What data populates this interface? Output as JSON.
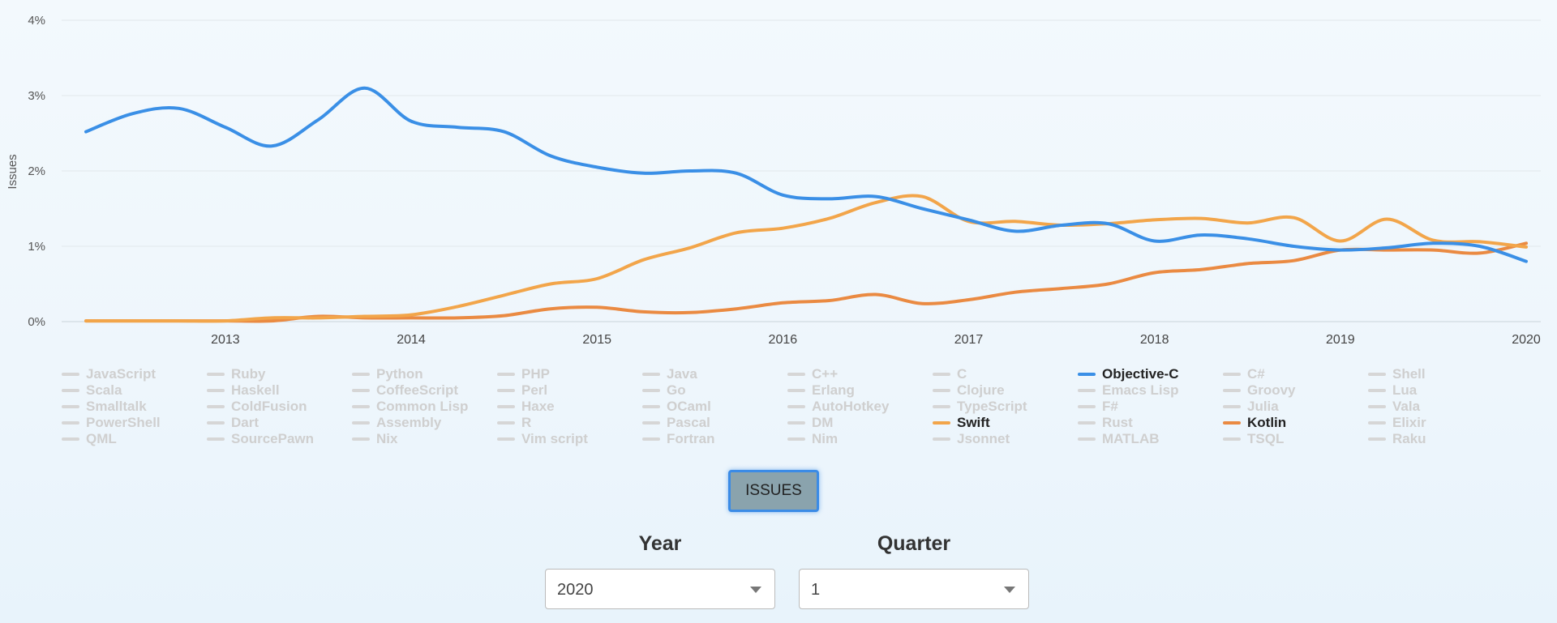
{
  "chart_data": {
    "type": "line",
    "ylabel": "Issues",
    "xlabel": "",
    "ylim": [
      0,
      4
    ],
    "y_ticks": [
      "0%",
      "1%",
      "2%",
      "3%",
      "4%"
    ],
    "x_range": [
      2012.25,
      2020.0
    ],
    "x_ticks": [
      "2013",
      "2014",
      "2015",
      "2016",
      "2017",
      "2018",
      "2019",
      "2020"
    ],
    "grid": true,
    "legend_position": "bottom",
    "series": [
      {
        "name": "Objective-C",
        "color": "#3a8fe6",
        "x": [
          2012.25,
          2012.5,
          2012.75,
          2013.0,
          2013.25,
          2013.5,
          2013.75,
          2014.0,
          2014.25,
          2014.5,
          2014.75,
          2015.0,
          2015.25,
          2015.5,
          2015.75,
          2016.0,
          2016.25,
          2016.5,
          2016.75,
          2017.0,
          2017.25,
          2017.5,
          2017.75,
          2018.0,
          2018.25,
          2018.5,
          2018.75,
          2019.0,
          2019.25,
          2019.5,
          2019.75,
          2020.0
        ],
        "y": [
          2.52,
          2.76,
          2.83,
          2.58,
          2.33,
          2.68,
          3.1,
          2.66,
          2.58,
          2.52,
          2.2,
          2.05,
          1.97,
          2.0,
          1.97,
          1.68,
          1.63,
          1.66,
          1.5,
          1.35,
          1.2,
          1.28,
          1.3,
          1.07,
          1.15,
          1.1,
          1.0,
          0.95,
          0.98,
          1.04,
          1.0,
          0.8
        ]
      },
      {
        "name": "Swift",
        "color": "#f2a54a",
        "x": [
          2012.25,
          2012.5,
          2012.75,
          2013.0,
          2013.25,
          2013.5,
          2013.75,
          2014.0,
          2014.25,
          2014.5,
          2014.75,
          2015.0,
          2015.25,
          2015.5,
          2015.75,
          2016.0,
          2016.25,
          2016.5,
          2016.75,
          2017.0,
          2017.25,
          2017.5,
          2017.75,
          2018.0,
          2018.25,
          2018.5,
          2018.75,
          2019.0,
          2019.25,
          2019.5,
          2019.75,
          2020.0
        ],
        "y": [
          0.01,
          0.01,
          0.01,
          0.01,
          0.05,
          0.05,
          0.07,
          0.09,
          0.2,
          0.35,
          0.5,
          0.57,
          0.82,
          0.98,
          1.18,
          1.24,
          1.37,
          1.58,
          1.66,
          1.33,
          1.33,
          1.28,
          1.3,
          1.35,
          1.37,
          1.31,
          1.38,
          1.07,
          1.36,
          1.08,
          1.06,
          0.99
        ]
      },
      {
        "name": "Kotlin",
        "color": "#ea8a42",
        "x": [
          2012.25,
          2012.5,
          2012.75,
          2013.0,
          2013.25,
          2013.5,
          2013.75,
          2014.0,
          2014.25,
          2014.5,
          2014.75,
          2015.0,
          2015.25,
          2015.5,
          2015.75,
          2016.0,
          2016.25,
          2016.5,
          2016.75,
          2017.0,
          2017.25,
          2017.5,
          2017.75,
          2018.0,
          2018.25,
          2018.5,
          2018.75,
          2019.0,
          2019.25,
          2019.5,
          2019.75,
          2020.0
        ],
        "y": [
          0.01,
          0.01,
          0.01,
          0.01,
          0.01,
          0.07,
          0.05,
          0.05,
          0.05,
          0.08,
          0.17,
          0.19,
          0.13,
          0.12,
          0.17,
          0.25,
          0.28,
          0.36,
          0.24,
          0.29,
          0.39,
          0.44,
          0.5,
          0.65,
          0.69,
          0.77,
          0.81,
          0.95,
          0.95,
          0.95,
          0.91,
          1.04
        ]
      }
    ]
  },
  "legend": {
    "items": [
      {
        "label": "JavaScript",
        "active": false
      },
      {
        "label": "Ruby",
        "active": false
      },
      {
        "label": "Python",
        "active": false
      },
      {
        "label": "PHP",
        "active": false
      },
      {
        "label": "Java",
        "active": false
      },
      {
        "label": "C++",
        "active": false
      },
      {
        "label": "C",
        "active": false
      },
      {
        "label": "Objective-C",
        "active": true,
        "color": "#3a8fe6"
      },
      {
        "label": "C#",
        "active": false
      },
      {
        "label": "Shell",
        "active": false
      },
      {
        "label": "Scala",
        "active": false
      },
      {
        "label": "Haskell",
        "active": false
      },
      {
        "label": "CoffeeScript",
        "active": false
      },
      {
        "label": "Perl",
        "active": false
      },
      {
        "label": "Go",
        "active": false
      },
      {
        "label": "Erlang",
        "active": false
      },
      {
        "label": "Clojure",
        "active": false
      },
      {
        "label": "Emacs Lisp",
        "active": false
      },
      {
        "label": "Groovy",
        "active": false
      },
      {
        "label": "Lua",
        "active": false
      },
      {
        "label": "Smalltalk",
        "active": false
      },
      {
        "label": "ColdFusion",
        "active": false
      },
      {
        "label": "Common Lisp",
        "active": false
      },
      {
        "label": "Haxe",
        "active": false
      },
      {
        "label": "OCaml",
        "active": false
      },
      {
        "label": "AutoHotkey",
        "active": false
      },
      {
        "label": "TypeScript",
        "active": false
      },
      {
        "label": "F#",
        "active": false
      },
      {
        "label": "Julia",
        "active": false
      },
      {
        "label": "Vala",
        "active": false
      },
      {
        "label": "PowerShell",
        "active": false
      },
      {
        "label": "Dart",
        "active": false
      },
      {
        "label": "Assembly",
        "active": false
      },
      {
        "label": "R",
        "active": false
      },
      {
        "label": "Pascal",
        "active": false
      },
      {
        "label": "DM",
        "active": false
      },
      {
        "label": "Swift",
        "active": true,
        "color": "#f2a54a"
      },
      {
        "label": "Rust",
        "active": false
      },
      {
        "label": "Kotlin",
        "active": true,
        "color": "#ea8a42"
      },
      {
        "label": "Elixir",
        "active": false
      },
      {
        "label": "QML",
        "active": false
      },
      {
        "label": "SourcePawn",
        "active": false
      },
      {
        "label": "Nix",
        "active": false
      },
      {
        "label": "Vim script",
        "active": false
      },
      {
        "label": "Fortran",
        "active": false
      },
      {
        "label": "Nim",
        "active": false
      },
      {
        "label": "Jsonnet",
        "active": false
      },
      {
        "label": "MATLAB",
        "active": false
      },
      {
        "label": "TSQL",
        "active": false
      },
      {
        "label": "Raku",
        "active": false
      }
    ]
  },
  "controls": {
    "issues_button": "ISSUES",
    "year_label": "Year",
    "year_value": "2020",
    "quarter_label": "Quarter",
    "quarter_value": "1"
  }
}
